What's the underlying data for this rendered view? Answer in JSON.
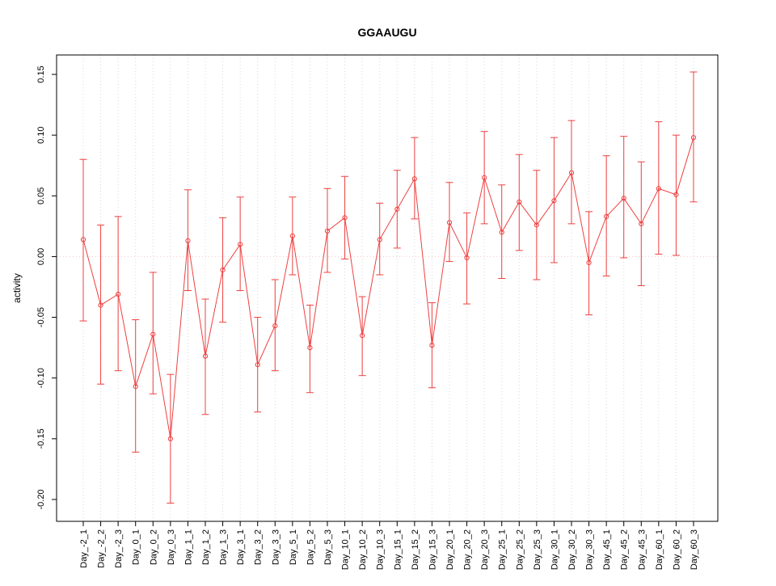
{
  "chart_data": {
    "type": "line",
    "title": "GGAAUGU",
    "ylabel": "activity",
    "xlabel": "",
    "ylim": [
      -0.218,
      0.166
    ],
    "yticks": [
      0.15,
      0.1,
      0.05,
      0.0,
      -0.05,
      -0.1,
      -0.15,
      -0.2
    ],
    "grid": "vertical-dotted",
    "zero_line": true,
    "legend": "none",
    "colors": {
      "series": "#ee4040",
      "grid": "#d8d8d8",
      "zero_line": "#ffc4c4",
      "axis": "#000000",
      "title": "#000000"
    },
    "categories": [
      "Day_-2_1",
      "Day_-2_2",
      "Day_-2_3",
      "Day_0_1",
      "Day_0_2",
      "Day_0_3",
      "Day_1_1",
      "Day_1_2",
      "Day_1_3",
      "Day_3_1",
      "Day_3_2",
      "Day_3_3",
      "Day_5_1",
      "Day_5_2",
      "Day_5_3",
      "Day_10_1",
      "Day_10_2",
      "Day_10_3",
      "Day_15_1",
      "Day_15_2",
      "Day_15_3",
      "Day_20_1",
      "Day_20_2",
      "Day_20_3",
      "Day_25_1",
      "Day_25_2",
      "Day_25_3",
      "Day_30_1",
      "Day_30_2",
      "Day_30_3",
      "Day_45_1",
      "Day_45_2",
      "Day_45_3",
      "Day_60_1",
      "Day_60_2",
      "Day_60_3"
    ],
    "values": [
      0.014,
      -0.04,
      -0.031,
      -0.107,
      -0.064,
      -0.15,
      0.013,
      -0.082,
      -0.011,
      0.01,
      -0.089,
      -0.057,
      0.017,
      -0.075,
      0.021,
      0.032,
      -0.065,
      0.014,
      0.039,
      0.064,
      -0.073,
      0.028,
      -0.001,
      0.065,
      0.02,
      0.045,
      0.026,
      0.046,
      0.069,
      -0.005,
      0.033,
      0.048,
      0.027,
      0.056,
      0.051,
      0.098
    ],
    "ci_low": [
      -0.053,
      -0.105,
      -0.094,
      -0.161,
      -0.113,
      -0.203,
      -0.028,
      -0.13,
      -0.054,
      -0.028,
      -0.128,
      -0.094,
      -0.015,
      -0.112,
      -0.013,
      -0.002,
      -0.098,
      -0.015,
      0.007,
      0.031,
      -0.108,
      -0.004,
      -0.039,
      0.027,
      -0.018,
      0.005,
      -0.019,
      -0.005,
      0.027,
      -0.048,
      -0.016,
      -0.001,
      -0.024,
      0.002,
      0.001,
      0.045
    ],
    "ci_high": [
      0.08,
      0.026,
      0.033,
      -0.052,
      -0.013,
      -0.097,
      0.055,
      -0.035,
      0.032,
      0.049,
      -0.05,
      -0.019,
      0.049,
      -0.04,
      0.056,
      0.066,
      -0.033,
      0.044,
      0.071,
      0.098,
      -0.038,
      0.061,
      0.036,
      0.103,
      0.059,
      0.084,
      0.071,
      0.098,
      0.112,
      0.037,
      0.083,
      0.099,
      0.078,
      0.111,
      0.1,
      0.152
    ]
  }
}
